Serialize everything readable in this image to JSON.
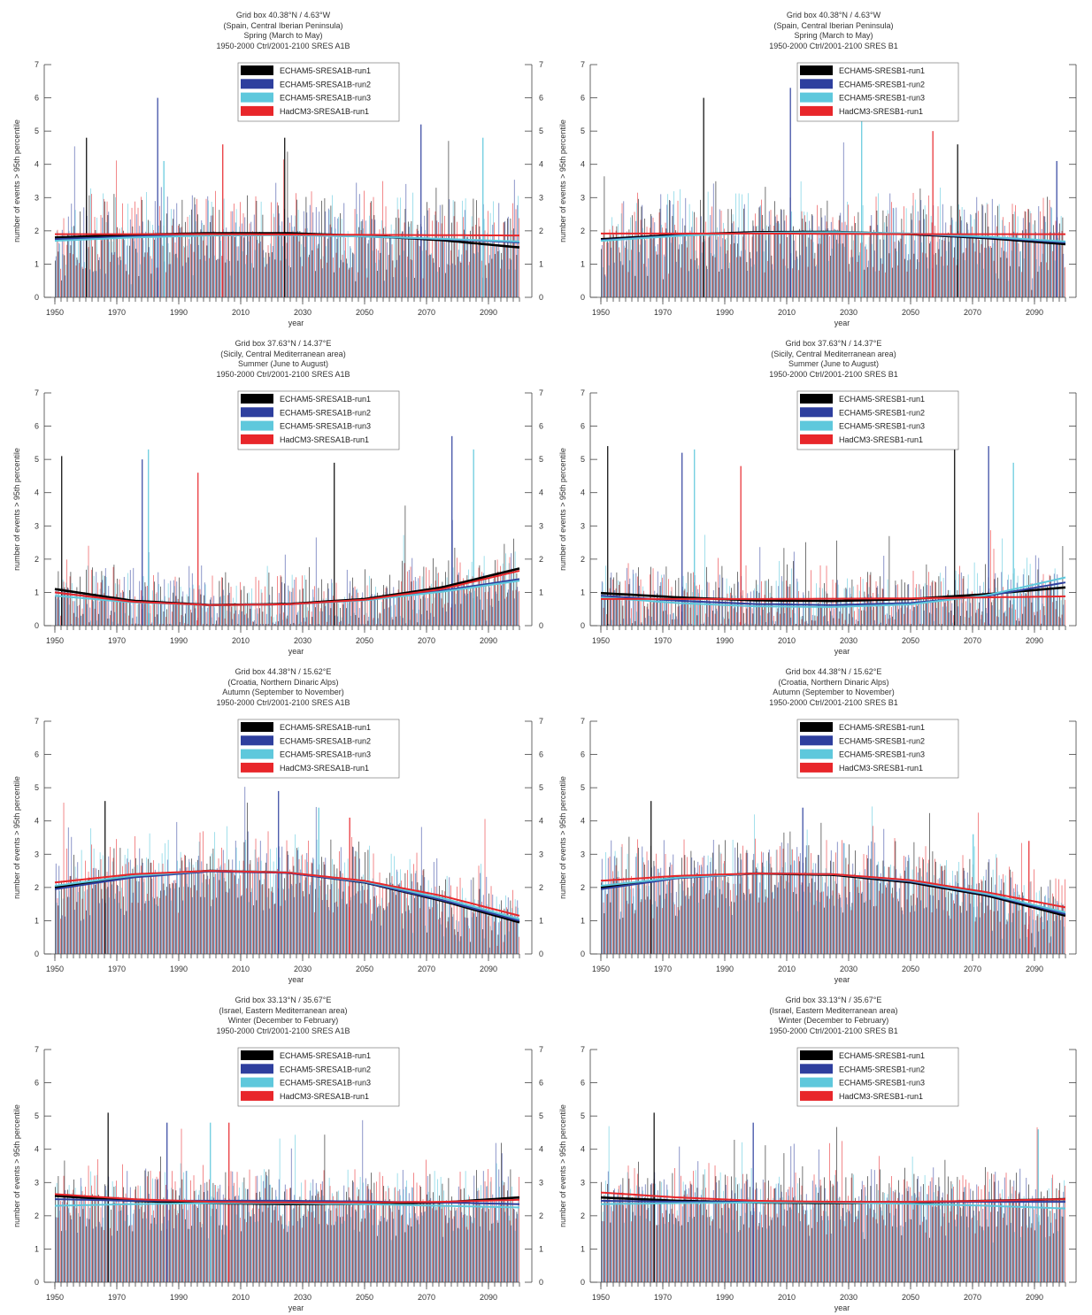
{
  "legend_colors": {
    "ECHAM5-run1": "#000000",
    "ECHAM5-run2": "#2e3f9e",
    "ECHAM5-run3": "#5ec8dc",
    "HadCM3-run1": "#e8262a"
  },
  "chart_data": [
    {
      "type": "bar",
      "title_lines": [
        "Grid box 40.38°N / 4.63°W",
        "(Spain, Central Iberian Peninsula)",
        "Spring (March to May)",
        "1950-2000 Ctrl/2001-2100 SRES A1B"
      ],
      "xlabel": "year",
      "ylabel": "number of events > 95th percentile",
      "xlim": [
        1950,
        2100
      ],
      "ylim": [
        0,
        7
      ],
      "xticks": [
        "1950",
        "1970",
        "1990",
        "2010",
        "2030",
        "2050",
        "2070",
        "2090"
      ],
      "yticks": [
        "0",
        "1",
        "2",
        "3",
        "4",
        "5",
        "6",
        "7"
      ],
      "right_axis": true,
      "legend": [
        "ECHAM5-SRESA1B-run1",
        "ECHAM5-SRESA1B-run2",
        "ECHAM5-SRESA1B-run3",
        "HadCM3-SRESA1B-run1"
      ],
      "trend_years": [
        1950,
        1975,
        2000,
        2025,
        2050,
        2075,
        2100
      ],
      "series": [
        {
          "name": "ECHAM5-SRESA1B-run1",
          "trend": [
            1.8,
            1.88,
            1.93,
            1.93,
            1.85,
            1.72,
            1.5
          ]
        },
        {
          "name": "ECHAM5-SRESA1B-run2",
          "trend": [
            1.75,
            1.83,
            1.88,
            1.88,
            1.83,
            1.75,
            1.65
          ]
        },
        {
          "name": "ECHAM5-SRESA1B-run3",
          "trend": [
            1.7,
            1.8,
            1.86,
            1.87,
            1.83,
            1.76,
            1.68
          ]
        },
        {
          "name": "HadCM3-SRESA1B-run1",
          "trend": [
            1.9,
            1.9,
            1.9,
            1.89,
            1.88,
            1.87,
            1.86
          ]
        }
      ],
      "peaks": [
        [
          1960,
          4.8
        ],
        [
          1983,
          6.0
        ],
        [
          1985,
          4.1
        ],
        [
          2004,
          4.6
        ],
        [
          2024,
          4.8
        ],
        [
          2068,
          5.2
        ],
        [
          2088,
          4.8
        ]
      ],
      "bar_base": 1.85,
      "bar_spread": 1.3
    },
    {
      "type": "bar",
      "title_lines": [
        "Grid box 40.38°N / 4.63°W",
        "(Spain, Central Iberian Peninsula)",
        "Spring (March to May)",
        "1950-2000 Ctrl/2001-2100 SRES B1"
      ],
      "xlabel": "year",
      "ylabel": "number of events > 95th percentile",
      "xlim": [
        1950,
        2100
      ],
      "ylim": [
        0,
        7
      ],
      "xticks": [
        "1950",
        "1970",
        "1990",
        "2010",
        "2030",
        "2050",
        "2070",
        "2090"
      ],
      "yticks": [
        "0",
        "1",
        "2",
        "3",
        "4",
        "5",
        "6",
        "7"
      ],
      "right_axis": false,
      "legend": [
        "ECHAM5-SRESB1-run1",
        "ECHAM5-SRESB1-run2",
        "ECHAM5-SRESB1-run3",
        "HadCM3-SRESB1-run1"
      ],
      "trend_years": [
        1950,
        1975,
        2000,
        2025,
        2050,
        2075,
        2100
      ],
      "series": [
        {
          "name": "ECHAM5-SRESB1-run1",
          "trend": [
            1.75,
            1.88,
            1.96,
            1.97,
            1.9,
            1.78,
            1.6
          ]
        },
        {
          "name": "ECHAM5-SRESB1-run2",
          "trend": [
            1.72,
            1.86,
            1.94,
            1.96,
            1.91,
            1.8,
            1.65
          ]
        },
        {
          "name": "ECHAM5-SRESB1-run3",
          "trend": [
            1.7,
            1.85,
            1.94,
            1.96,
            1.92,
            1.82,
            1.68
          ]
        },
        {
          "name": "HadCM3-SRESB1-run1",
          "trend": [
            1.92,
            1.92,
            1.92,
            1.91,
            1.9,
            1.9,
            1.9
          ]
        }
      ],
      "peaks": [
        [
          1983,
          6.0
        ],
        [
          2011,
          6.3
        ],
        [
          2034,
          6.0
        ],
        [
          2057,
          5.0
        ],
        [
          2065,
          4.6
        ],
        [
          2097,
          4.1
        ]
      ],
      "bar_base": 1.85,
      "bar_spread": 1.3
    },
    {
      "type": "bar",
      "title_lines": [
        "Grid box 37.63°N / 14.37°E",
        "(Sicily, Central Mediterranean area)",
        "Summer (June to August)",
        "1950-2000 Ctrl/2001-2100 SRES A1B"
      ],
      "xlabel": "year",
      "ylabel": "number of events > 95th percentile",
      "xlim": [
        1950,
        2100
      ],
      "ylim": [
        0,
        7
      ],
      "xticks": [
        "1950",
        "1970",
        "1990",
        "2010",
        "2030",
        "2050",
        "2070",
        "2090"
      ],
      "yticks": [
        "0",
        "1",
        "2",
        "3",
        "4",
        "5",
        "6",
        "7"
      ],
      "right_axis": true,
      "legend": [
        "ECHAM5-SRESA1B-run1",
        "ECHAM5-SRESA1B-run2",
        "ECHAM5-SRESA1B-run3",
        "HadCM3-SRESA1B-run1"
      ],
      "trend_years": [
        1950,
        1975,
        2000,
        2025,
        2050,
        2075,
        2100
      ],
      "series": [
        {
          "name": "ECHAM5-SRESA1B-run1",
          "trend": [
            1.1,
            0.75,
            0.62,
            0.65,
            0.8,
            1.15,
            1.72
          ]
        },
        {
          "name": "ECHAM5-SRESA1B-run2",
          "trend": [
            1.0,
            0.72,
            0.62,
            0.64,
            0.77,
            1.05,
            1.4
          ]
        },
        {
          "name": "ECHAM5-SRESA1B-run3",
          "trend": [
            0.9,
            0.7,
            0.62,
            0.64,
            0.76,
            1.02,
            1.35
          ]
        },
        {
          "name": "HadCM3-SRESA1B-run1",
          "trend": [
            1.0,
            0.72,
            0.62,
            0.64,
            0.78,
            1.1,
            1.65
          ]
        }
      ],
      "peaks": [
        [
          1952,
          5.1
        ],
        [
          1978,
          5.0
        ],
        [
          1980,
          5.3
        ],
        [
          1996,
          4.6
        ],
        [
          2040,
          4.9
        ],
        [
          2078,
          5.7
        ],
        [
          2085,
          5.3
        ]
      ],
      "bar_base": 0.75,
      "bar_spread": 1.0
    },
    {
      "type": "bar",
      "title_lines": [
        "Grid box 37.63°N / 14.37°E",
        "(Sicily, Central Mediterranean area)",
        "Summer (June to August)",
        "1950-2000 Ctrl/2001-2100 SRES B1"
      ],
      "xlabel": "year",
      "ylabel": "number of events > 95th percentile",
      "xlim": [
        1950,
        2100
      ],
      "ylim": [
        0,
        7
      ],
      "xticks": [
        "1950",
        "1970",
        "1990",
        "2010",
        "2030",
        "2050",
        "2070",
        "2090"
      ],
      "yticks": [
        "0",
        "1",
        "2",
        "3",
        "4",
        "5",
        "6",
        "7"
      ],
      "right_axis": false,
      "legend": [
        "ECHAM5-SRESB1-run1",
        "ECHAM5-SRESB1-run2",
        "ECHAM5-SRESB1-run3",
        "HadCM3-SRESB1-run1"
      ],
      "trend_years": [
        1950,
        1975,
        2000,
        2025,
        2050,
        2075,
        2100
      ],
      "series": [
        {
          "name": "ECHAM5-SRESB1-run1",
          "trend": [
            0.98,
            0.85,
            0.76,
            0.74,
            0.8,
            0.95,
            1.15
          ]
        },
        {
          "name": "ECHAM5-SRESB1-run2",
          "trend": [
            0.9,
            0.75,
            0.65,
            0.62,
            0.68,
            0.9,
            1.3
          ]
        },
        {
          "name": "ECHAM5-SRESB1-run3",
          "trend": [
            0.85,
            0.68,
            0.58,
            0.56,
            0.64,
            0.92,
            1.45
          ]
        },
        {
          "name": "HadCM3-SRESB1-run1",
          "trend": [
            0.8,
            0.8,
            0.8,
            0.81,
            0.82,
            0.85,
            0.88
          ]
        }
      ],
      "peaks": [
        [
          1952,
          5.4
        ],
        [
          1976,
          5.2
        ],
        [
          1980,
          5.3
        ],
        [
          1995,
          4.8
        ],
        [
          2064,
          5.4
        ],
        [
          2075,
          5.4
        ],
        [
          2083,
          4.9
        ]
      ],
      "bar_base": 0.7,
      "bar_spread": 1.0
    },
    {
      "type": "bar",
      "title_lines": [
        "Grid box 44.38°N / 15.62°E",
        "(Croatia, Northern Dinaric Alps)",
        "Autumn (September to November)",
        "1950-2000 Ctrl/2001-2100 SRES A1B"
      ],
      "xlabel": "year",
      "ylabel": "number of events > 95th percentile",
      "xlim": [
        1950,
        2100
      ],
      "ylim": [
        0,
        7
      ],
      "xticks": [
        "1950",
        "1970",
        "1990",
        "2010",
        "2030",
        "2050",
        "2070",
        "2090"
      ],
      "yticks": [
        "0",
        "1",
        "2",
        "3",
        "4",
        "5",
        "6",
        "7"
      ],
      "right_axis": true,
      "legend": [
        "ECHAM5-SRESA1B-run1",
        "ECHAM5-SRESA1B-run2",
        "ECHAM5-SRESA1B-run3",
        "HadCM3-SRESA1B-run1"
      ],
      "trend_years": [
        1950,
        1975,
        2000,
        2025,
        2050,
        2075,
        2100
      ],
      "series": [
        {
          "name": "ECHAM5-SRESA1B-run1",
          "trend": [
            2.0,
            2.35,
            2.5,
            2.45,
            2.15,
            1.6,
            0.95
          ]
        },
        {
          "name": "ECHAM5-SRESA1B-run2",
          "trend": [
            1.95,
            2.3,
            2.48,
            2.44,
            2.15,
            1.62,
            1.0
          ]
        },
        {
          "name": "ECHAM5-SRESA1B-run3",
          "trend": [
            2.05,
            2.35,
            2.5,
            2.46,
            2.18,
            1.68,
            1.05
          ]
        },
        {
          "name": "HadCM3-SRESA1B-run1",
          "trend": [
            2.15,
            2.4,
            2.5,
            2.45,
            2.2,
            1.75,
            1.15
          ]
        }
      ],
      "peaks": [
        [
          1966,
          4.6
        ],
        [
          2022,
          4.9
        ],
        [
          2035,
          4.4
        ],
        [
          2045,
          4.1
        ]
      ],
      "bar_base": 2.0,
      "bar_spread": 1.2
    },
    {
      "type": "bar",
      "title_lines": [
        "Grid box 44.38°N / 15.62°E",
        "(Croatia, Northern Dinaric Alps)",
        "Autumn (September to November)",
        "1950-2000 Ctrl/2001-2100 SRES B1"
      ],
      "xlabel": "year",
      "ylabel": "number of events > 95th percentile",
      "xlim": [
        1950,
        2100
      ],
      "ylim": [
        0,
        7
      ],
      "xticks": [
        "1950",
        "1970",
        "1990",
        "2010",
        "2030",
        "2050",
        "2070",
        "2090"
      ],
      "yticks": [
        "0",
        "1",
        "2",
        "3",
        "4",
        "5",
        "6",
        "7"
      ],
      "right_axis": false,
      "legend": [
        "ECHAM5-SRESB1-run1",
        "ECHAM5-SRESB1-run2",
        "ECHAM5-SRESB1-run3",
        "HadCM3-SRESB1-run1"
      ],
      "trend_years": [
        1950,
        1975,
        2000,
        2025,
        2050,
        2075,
        2100
      ],
      "series": [
        {
          "name": "ECHAM5-SRESB1-run1",
          "trend": [
            2.0,
            2.3,
            2.42,
            2.38,
            2.15,
            1.75,
            1.15
          ]
        },
        {
          "name": "ECHAM5-SRESB1-run2",
          "trend": [
            1.95,
            2.28,
            2.42,
            2.4,
            2.18,
            1.78,
            1.2
          ]
        },
        {
          "name": "ECHAM5-SRESB1-run3",
          "trend": [
            2.05,
            2.3,
            2.42,
            2.4,
            2.2,
            1.8,
            1.25
          ]
        },
        {
          "name": "HadCM3-SRESB1-run1",
          "trend": [
            2.2,
            2.35,
            2.42,
            2.4,
            2.22,
            1.85,
            1.4
          ]
        }
      ],
      "peaks": [
        [
          1966,
          4.6
        ],
        [
          2015,
          4.4
        ],
        [
          2070,
          3.6
        ],
        [
          2088,
          3.4
        ]
      ],
      "bar_base": 2.0,
      "bar_spread": 1.2
    },
    {
      "type": "bar",
      "title_lines": [
        "Grid box 33.13°N / 35.67°E",
        "(Israel, Eastern Mediterranean area)",
        "Winter (December to February)",
        "1950-2000 Ctrl/2001-2100 SRES A1B"
      ],
      "xlabel": "year",
      "ylabel": "number of events > 95th percentile",
      "xlim": [
        1950,
        2100
      ],
      "ylim": [
        0,
        7
      ],
      "xticks": [
        "1950",
        "1970",
        "1990",
        "2010",
        "2030",
        "2050",
        "2070",
        "2090"
      ],
      "yticks": [
        "0",
        "1",
        "2",
        "3",
        "4",
        "5",
        "6",
        "7"
      ],
      "right_axis": true,
      "legend": [
        "ECHAM5-SRESA1B-run1",
        "ECHAM5-SRESA1B-run2",
        "ECHAM5-SRESA1B-run3",
        "HadCM3-SRESA1B-run1"
      ],
      "trend_years": [
        1950,
        1975,
        2000,
        2025,
        2050,
        2075,
        2100
      ],
      "series": [
        {
          "name": "ECHAM5-SRESA1B-run1",
          "trend": [
            2.6,
            2.45,
            2.38,
            2.35,
            2.36,
            2.4,
            2.55
          ]
        },
        {
          "name": "ECHAM5-SRESA1B-run2",
          "trend": [
            2.5,
            2.45,
            2.45,
            2.45,
            2.43,
            2.4,
            2.35
          ]
        },
        {
          "name": "ECHAM5-SRESA1B-run3",
          "trend": [
            2.3,
            2.35,
            2.38,
            2.38,
            2.35,
            2.3,
            2.25
          ]
        },
        {
          "name": "HadCM3-SRESA1B-run1",
          "trend": [
            2.65,
            2.5,
            2.42,
            2.4,
            2.4,
            2.42,
            2.48
          ]
        }
      ],
      "peaks": [
        [
          1967,
          5.1
        ],
        [
          1986,
          4.8
        ],
        [
          2000,
          4.8
        ],
        [
          2006,
          4.8
        ]
      ],
      "bar_base": 2.35,
      "bar_spread": 1.0
    },
    {
      "type": "bar",
      "title_lines": [
        "Grid box 33.13°N / 35.67°E",
        "(Israel, Eastern Mediterranean area)",
        "Winter (December to February)",
        "1950-2000 Ctrl/2001-2100 SRES B1"
      ],
      "xlabel": "year",
      "ylabel": "number of events > 95th percentile",
      "xlim": [
        1950,
        2100
      ],
      "ylim": [
        0,
        7
      ],
      "xticks": [
        "1950",
        "1970",
        "1990",
        "2010",
        "2030",
        "2050",
        "2070",
        "2090"
      ],
      "yticks": [
        "0",
        "1",
        "2",
        "3",
        "4",
        "5",
        "6",
        "7"
      ],
      "right_axis": false,
      "legend": [
        "ECHAM5-SRESB1-run1",
        "ECHAM5-SRESB1-run2",
        "ECHAM5-SRESB1-run3",
        "HadCM3-SRESB1-run1"
      ],
      "trend_years": [
        1950,
        1975,
        2000,
        2025,
        2050,
        2075,
        2100
      ],
      "series": [
        {
          "name": "ECHAM5-SRESB1-run1",
          "trend": [
            2.55,
            2.45,
            2.4,
            2.38,
            2.4,
            2.45,
            2.5
          ]
        },
        {
          "name": "ECHAM5-SRESB1-run2",
          "trend": [
            2.45,
            2.42,
            2.42,
            2.42,
            2.42,
            2.42,
            2.42
          ]
        },
        {
          "name": "ECHAM5-SRESB1-run3",
          "trend": [
            2.35,
            2.38,
            2.4,
            2.4,
            2.36,
            2.3,
            2.22
          ]
        },
        {
          "name": "HadCM3-SRESB1-run1",
          "trend": [
            2.7,
            2.55,
            2.45,
            2.42,
            2.42,
            2.45,
            2.5
          ]
        }
      ],
      "peaks": [
        [
          1967,
          5.1
        ],
        [
          1999,
          4.8
        ],
        [
          2091,
          4.6
        ]
      ],
      "bar_base": 2.35,
      "bar_spread": 1.0
    }
  ]
}
